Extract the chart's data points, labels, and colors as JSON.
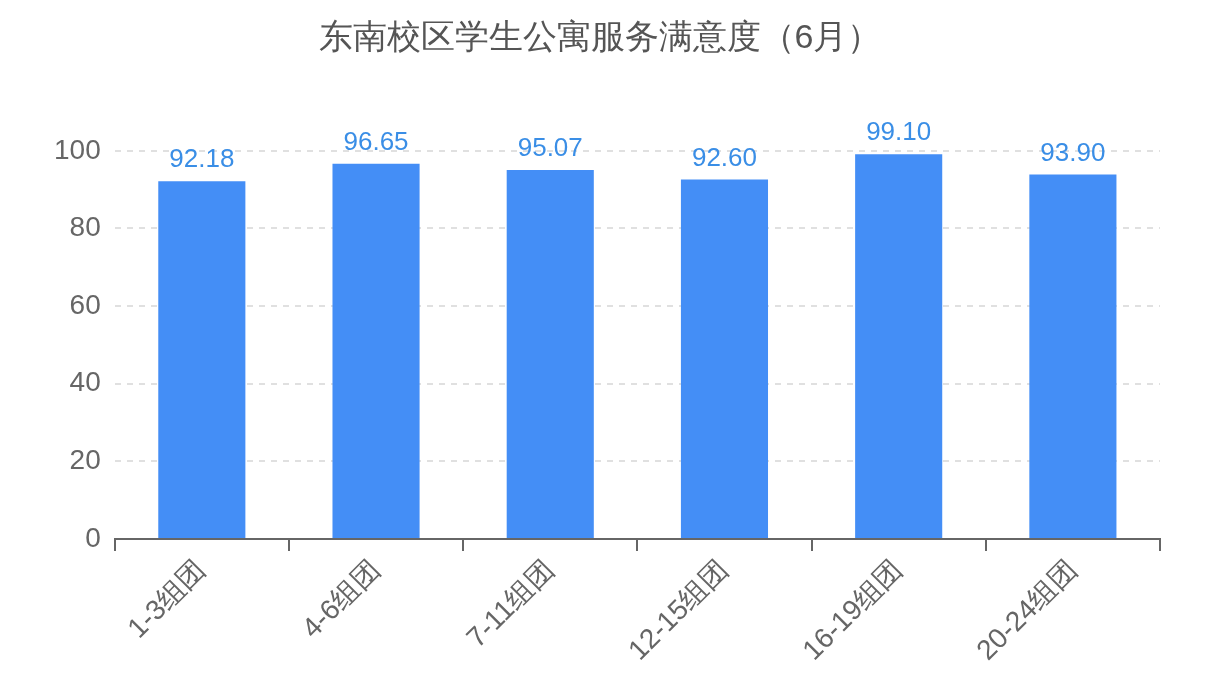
{
  "chart_data": {
    "type": "bar",
    "title": "东南校区学生公寓服务满意度（6月）",
    "categories": [
      "1-3组团",
      "4-6组团",
      "7-11组团",
      "12-15组团",
      "16-19组团",
      "20-24组团"
    ],
    "values": [
      92.18,
      96.65,
      95.07,
      92.6,
      99.1,
      93.9
    ],
    "value_labels": [
      "92.18",
      "96.65",
      "95.07",
      "92.60",
      "99.10",
      "93.90"
    ],
    "color": "#448ef6",
    "ylim": [
      0,
      100
    ],
    "yticks": [
      0,
      20,
      40,
      60,
      80,
      100
    ],
    "grid": "y",
    "legend": false
  }
}
